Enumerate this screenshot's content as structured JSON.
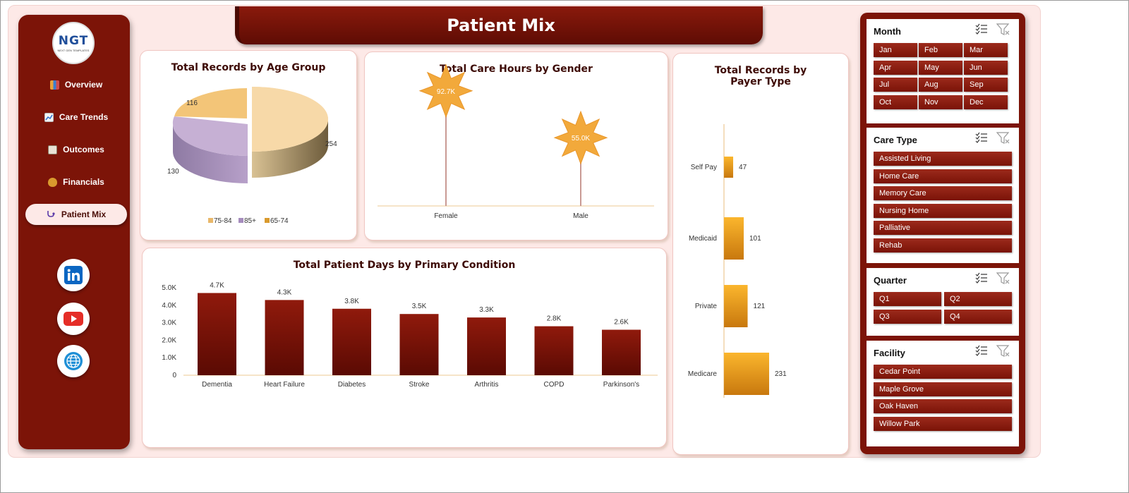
{
  "header": {
    "title": "Patient Mix"
  },
  "logo": {
    "text": "NGT",
    "sub": "NEXT GEN TEMPLATES"
  },
  "sidebar": {
    "items": [
      {
        "label": "Overview",
        "icon": "bar-chart-icon"
      },
      {
        "label": "Care Trends",
        "icon": "line-chart-icon"
      },
      {
        "label": "Outcomes",
        "icon": "clipboard-icon"
      },
      {
        "label": "Financials",
        "icon": "money-bag-icon"
      },
      {
        "label": "Patient Mix",
        "icon": "stethoscope-icon",
        "active": true
      }
    ],
    "social": [
      "linkedin-icon",
      "youtube-icon",
      "globe-icon"
    ]
  },
  "colors": {
    "maroon": "#7c1408",
    "accent": "#f5a623",
    "panel_bg": "#fde9e7"
  },
  "chart_data": [
    {
      "type": "pie",
      "title": "Total Records by Age Group",
      "categories": [
        "75-84",
        "85+",
        "65-74"
      ],
      "values": [
        254,
        130,
        116
      ],
      "colors": [
        "#f7d9a8",
        "#c6b0d4",
        "#f3c578"
      ],
      "legend": "bottom"
    },
    {
      "type": "lollipop",
      "title": "Total Care Hours by Gender",
      "categories": [
        "Female",
        "Male"
      ],
      "values": [
        92.7,
        55.0
      ],
      "labels": [
        "92.7K",
        "55.0K"
      ]
    },
    {
      "type": "bar",
      "orientation": "horizontal",
      "title": "Total Records by Payer Type",
      "categories": [
        "Self Pay",
        "Medicaid",
        "Private",
        "Medicare"
      ],
      "values": [
        47,
        101,
        121,
        231
      ]
    },
    {
      "type": "bar",
      "title": "Total Patient Days by Primary Condition",
      "categories": [
        "Dementia",
        "Heart Failure",
        "Diabetes",
        "Stroke",
        "Arthritis",
        "COPD",
        "Parkinson's"
      ],
      "values": [
        4.7,
        4.3,
        3.8,
        3.5,
        3.3,
        2.8,
        2.6
      ],
      "labels": [
        "4.7K",
        "4.3K",
        "3.8K",
        "3.5K",
        "3.3K",
        "2.8K",
        "2.6K"
      ],
      "yticks": [
        "5.0K",
        "4.0K",
        "3.0K",
        "2.0K",
        "1.0K",
        "0"
      ],
      "ylim": [
        0,
        5
      ]
    }
  ],
  "slicers": {
    "month": {
      "title": "Month",
      "items": [
        "Jan",
        "Feb",
        "Mar",
        "Apr",
        "May",
        "Jun",
        "Jul",
        "Aug",
        "Sep",
        "Oct",
        "Nov",
        "Dec"
      ]
    },
    "care_type": {
      "title": "Care Type",
      "items": [
        "Assisted Living",
        "Home Care",
        "Memory Care",
        "Nursing Home",
        "Palliative",
        "Rehab"
      ]
    },
    "quarter": {
      "title": "Quarter",
      "items": [
        "Q1",
        "Q2",
        "Q3",
        "Q4"
      ]
    },
    "facility": {
      "title": "Facility",
      "items": [
        "Cedar Point",
        "Maple Grove",
        "Oak Haven",
        "Willow Park"
      ]
    }
  }
}
